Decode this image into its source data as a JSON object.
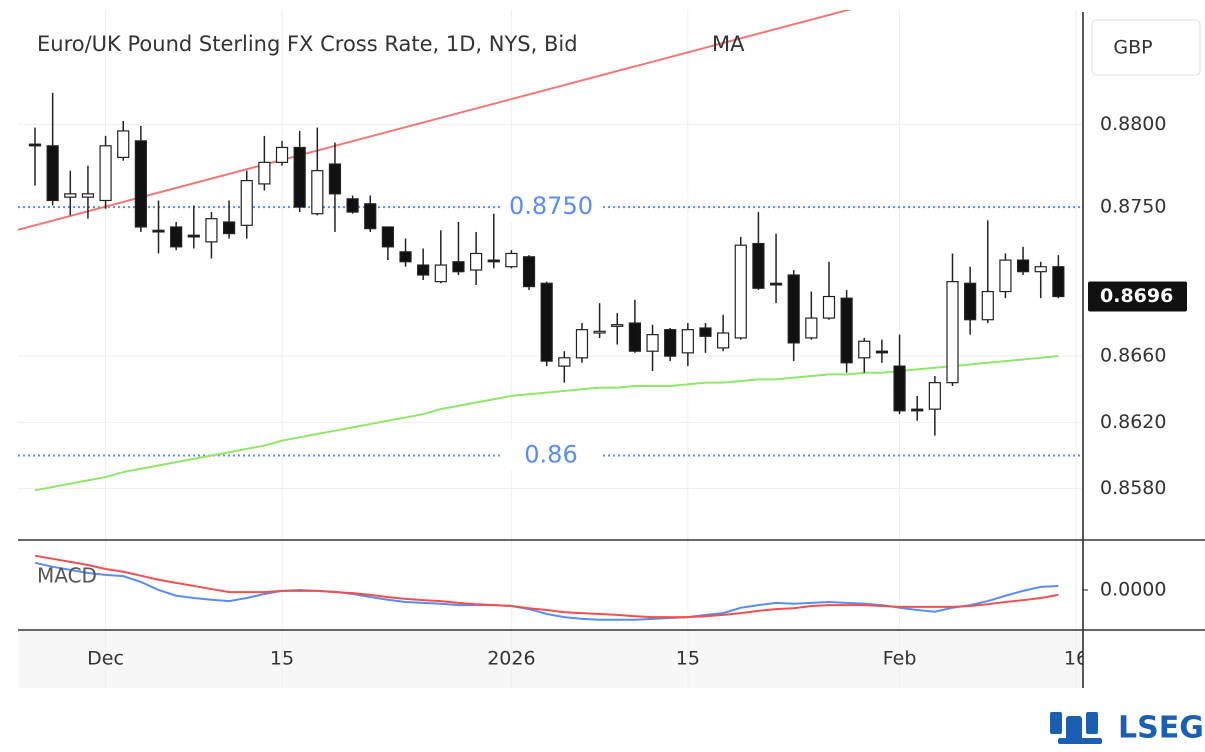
{
  "chart_data": [
    {
      "type": "candlestick",
      "title": "Euro/UK Pound Sterling FX Cross Rate, 1D, NYS, Bid",
      "y_unit": "GBP",
      "categories": [
        null,
        null,
        null,
        null,
        "Dec",
        null,
        null,
        null,
        null,
        null,
        null,
        null,
        null,
        null,
        "15",
        null,
        null,
        null,
        null,
        null,
        null,
        null,
        null,
        null,
        null,
        null,
        null,
        "2026",
        null,
        null,
        null,
        null,
        null,
        null,
        null,
        null,
        null,
        "15",
        null,
        null,
        null,
        null,
        null,
        null,
        null,
        null,
        null,
        null,
        null,
        "Feb",
        null,
        null,
        null,
        null,
        null,
        null,
        null,
        null,
        null,
        "16"
      ],
      "open": [
        0.8788,
        0.8787,
        0.8756,
        0.8756,
        0.8754,
        0.878,
        0.879,
        0.8736,
        0.8738,
        0.8733,
        0.8729,
        0.8741,
        0.8739,
        0.8764,
        0.8777,
        0.8786,
        0.8746,
        0.8776,
        0.8755,
        0.8752,
        0.8738,
        0.8723,
        0.8715,
        0.8705,
        0.8717,
        0.8712,
        0.8718,
        0.8714,
        0.872,
        0.8704,
        0.8654,
        0.8659,
        0.8674,
        0.8678,
        0.868,
        0.8663,
        0.8676,
        0.8662,
        0.8677,
        0.8665,
        0.8671,
        0.8728,
        0.8704,
        0.8709,
        0.8671,
        0.8683,
        0.8695,
        0.8659,
        0.8663,
        0.8654,
        0.8628,
        0.8628,
        0.8644,
        0.8704,
        0.8682,
        0.8699,
        0.8718,
        0.8711,
        0.8714,
        null
      ],
      "high": [
        0.8798,
        0.8819,
        0.8772,
        0.8775,
        0.8793,
        0.8802,
        0.8799,
        0.8754,
        0.8741,
        0.8751,
        0.8747,
        0.8754,
        0.8772,
        0.8793,
        0.879,
        0.8796,
        0.8798,
        0.8789,
        0.8757,
        0.8757,
        0.8738,
        0.8731,
        0.8725,
        0.8736,
        0.8741,
        0.8735,
        0.8746,
        0.8724,
        0.8721,
        0.8705,
        0.8663,
        0.868,
        0.8692,
        0.8686,
        0.8694,
        0.8679,
        0.8677,
        0.868,
        0.868,
        0.8685,
        0.8732,
        0.8747,
        0.8734,
        0.8712,
        0.8699,
        0.8717,
        0.87,
        0.8671,
        0.867,
        0.8673,
        0.8636,
        0.8648,
        0.8722,
        0.8714,
        0.8742,
        0.8722,
        0.8726,
        0.8717,
        0.8721,
        null
      ],
      "low": [
        0.8763,
        0.8751,
        0.8745,
        0.8743,
        0.8749,
        0.8778,
        0.8735,
        0.8722,
        0.8724,
        0.8725,
        0.8719,
        0.8731,
        0.8731,
        0.876,
        0.8775,
        0.8747,
        0.8745,
        0.8735,
        0.8746,
        0.8735,
        0.8718,
        0.8714,
        0.8706,
        0.8704,
        0.8709,
        0.8703,
        0.8713,
        0.8713,
        0.87,
        0.8654,
        0.8644,
        0.8656,
        0.8671,
        0.8667,
        0.8662,
        0.8651,
        0.8657,
        0.8654,
        0.8662,
        0.8663,
        0.867,
        0.87,
        0.8692,
        0.8657,
        0.867,
        0.8682,
        0.865,
        0.865,
        0.8656,
        0.8625,
        0.8621,
        0.8612,
        0.8642,
        0.8673,
        0.868,
        0.8695,
        0.8709,
        0.8695,
        0.8695,
        null
      ],
      "close": [
        0.8787,
        0.8754,
        0.8758,
        0.8758,
        0.8787,
        0.8796,
        0.8738,
        0.8735,
        0.8726,
        0.8732,
        0.8743,
        0.8734,
        0.8766,
        0.8777,
        0.8786,
        0.875,
        0.8772,
        0.8758,
        0.8747,
        0.8737,
        0.8726,
        0.8717,
        0.8709,
        0.8715,
        0.8711,
        0.8722,
        0.8717,
        0.8722,
        0.8702,
        0.8657,
        0.8659,
        0.8676,
        0.8675,
        0.8679,
        0.8663,
        0.8673,
        0.866,
        0.8676,
        0.8672,
        0.8674,
        0.8727,
        0.8701,
        0.8703,
        0.8668,
        0.8683,
        0.8696,
        0.8656,
        0.8669,
        0.8662,
        0.8627,
        0.8627,
        0.8644,
        0.8705,
        0.8682,
        0.8699,
        0.8718,
        0.8711,
        0.8714,
        0.8696,
        null
      ],
      "up_color": "#ffffff",
      "down_color": "#111111",
      "edge_color": "#222222",
      "series": [
        {
          "name": "MA",
          "color": "#8fe66a",
          "values": [
            0.8579,
            0.8581,
            0.8583,
            0.8585,
            0.8587,
            0.859,
            0.8592,
            0.8594,
            0.8596,
            0.8598,
            0.86,
            0.8602,
            0.8604,
            0.8606,
            0.8609,
            0.8611,
            0.8613,
            0.8615,
            0.8617,
            0.8619,
            0.8621,
            0.8623,
            0.8625,
            0.8628,
            0.863,
            0.8632,
            0.8634,
            0.8636,
            0.8637,
            0.8638,
            0.8639,
            0.864,
            0.8641,
            0.8641,
            0.8642,
            0.8642,
            0.8642,
            0.8643,
            0.8644,
            0.8644,
            0.8645,
            0.8646,
            0.8646,
            0.8647,
            0.8648,
            0.8649,
            0.8649,
            0.865,
            0.865,
            0.8651,
            0.8652,
            0.8653,
            0.8654,
            0.8655,
            0.8656,
            0.8657,
            0.8658,
            0.8659,
            0.866,
            null
          ]
        }
      ],
      "trendline": {
        "color": "#f07878",
        "from": {
          "index": 0,
          "value": 0.8739
        },
        "to": {
          "index": 45,
          "value": 0.8866
        }
      },
      "hlines": [
        {
          "value": 0.875,
          "label": "0.8750",
          "color": "#5b8def"
        },
        {
          "value": 0.86,
          "label": "0.86",
          "color": "#5b8def"
        }
      ],
      "last_price": {
        "value": 0.8696,
        "label": "0.8696"
      },
      "ylim": [
        0.8549,
        0.8869
      ],
      "yticks": [
        {
          "value": 0.88,
          "label": "0.8800"
        },
        {
          "value": 0.875,
          "label": "0.8750"
        },
        {
          "value": 0.866,
          "label": "0.8660"
        },
        {
          "value": 0.862,
          "label": "0.8620"
        },
        {
          "value": 0.858,
          "label": "0.8580"
        }
      ],
      "grid": true
    },
    {
      "type": "line",
      "title": "MACD",
      "series": [
        {
          "color": "#5b8def",
          "values": [
            0.00061,
            0.00052,
            0.00045,
            0.00038,
            0.00034,
            0.00031,
            0.00018,
            0,
            -0.00013,
            -0.00018,
            -0.00022,
            -0.00025,
            -0.00018,
            -9e-05,
            -2e-05,
            0,
            -2e-05,
            -4e-05,
            -9e-05,
            -0.00016,
            -0.00022,
            -0.00027,
            -0.00029,
            -0.00031,
            -0.00034,
            -0.00034,
            -0.00034,
            -0.00036,
            -0.00043,
            -0.00054,
            -0.00061,
            -0.00065,
            -0.00067,
            -0.00067,
            -0.00067,
            -0.00065,
            -0.00063,
            -0.00061,
            -0.00056,
            -0.00052,
            -0.0004,
            -0.00034,
            -0.00029,
            -0.00031,
            -0.00029,
            -0.00027,
            -0.00029,
            -0.00031,
            -0.00034,
            -0.0004,
            -0.00045,
            -0.00049,
            -0.0004,
            -0.00034,
            -0.00025,
            -0.00013,
            -2e-05,
            7e-05,
            9e-05,
            null
          ]
        },
        {
          "color": "#f05050",
          "values": [
            0.00077,
            0.0007,
            0.00063,
            0.00056,
            0.00047,
            0.00041,
            0.00032,
            0.00023,
            0.00016,
            9e-05,
            2e-05,
            -5e-05,
            -5e-05,
            -5e-05,
            -2e-05,
            -2e-05,
            -2e-05,
            -5e-05,
            -7e-05,
            -0.00011,
            -0.00016,
            -0.0002,
            -0.00023,
            -0.00025,
            -0.00029,
            -0.00032,
            -0.00034,
            -0.00036,
            -0.00041,
            -0.00045,
            -0.0005,
            -0.00052,
            -0.00054,
            -0.00056,
            -0.00059,
            -0.00061,
            -0.00061,
            -0.00061,
            -0.00059,
            -0.00056,
            -0.00052,
            -0.00047,
            -0.00043,
            -0.00041,
            -0.00036,
            -0.00034,
            -0.00034,
            -0.00034,
            -0.00036,
            -0.00038,
            -0.00038,
            -0.00038,
            -0.00038,
            -0.00036,
            -0.00032,
            -0.00027,
            -0.00023,
            -0.00018,
            -0.00011,
            null
          ]
        }
      ],
      "ylim": [
        -0.0009,
        0.0011
      ],
      "yticks": [
        {
          "value": 0,
          "label": "0.0000"
        }
      ]
    }
  ],
  "logo": "LSEG"
}
